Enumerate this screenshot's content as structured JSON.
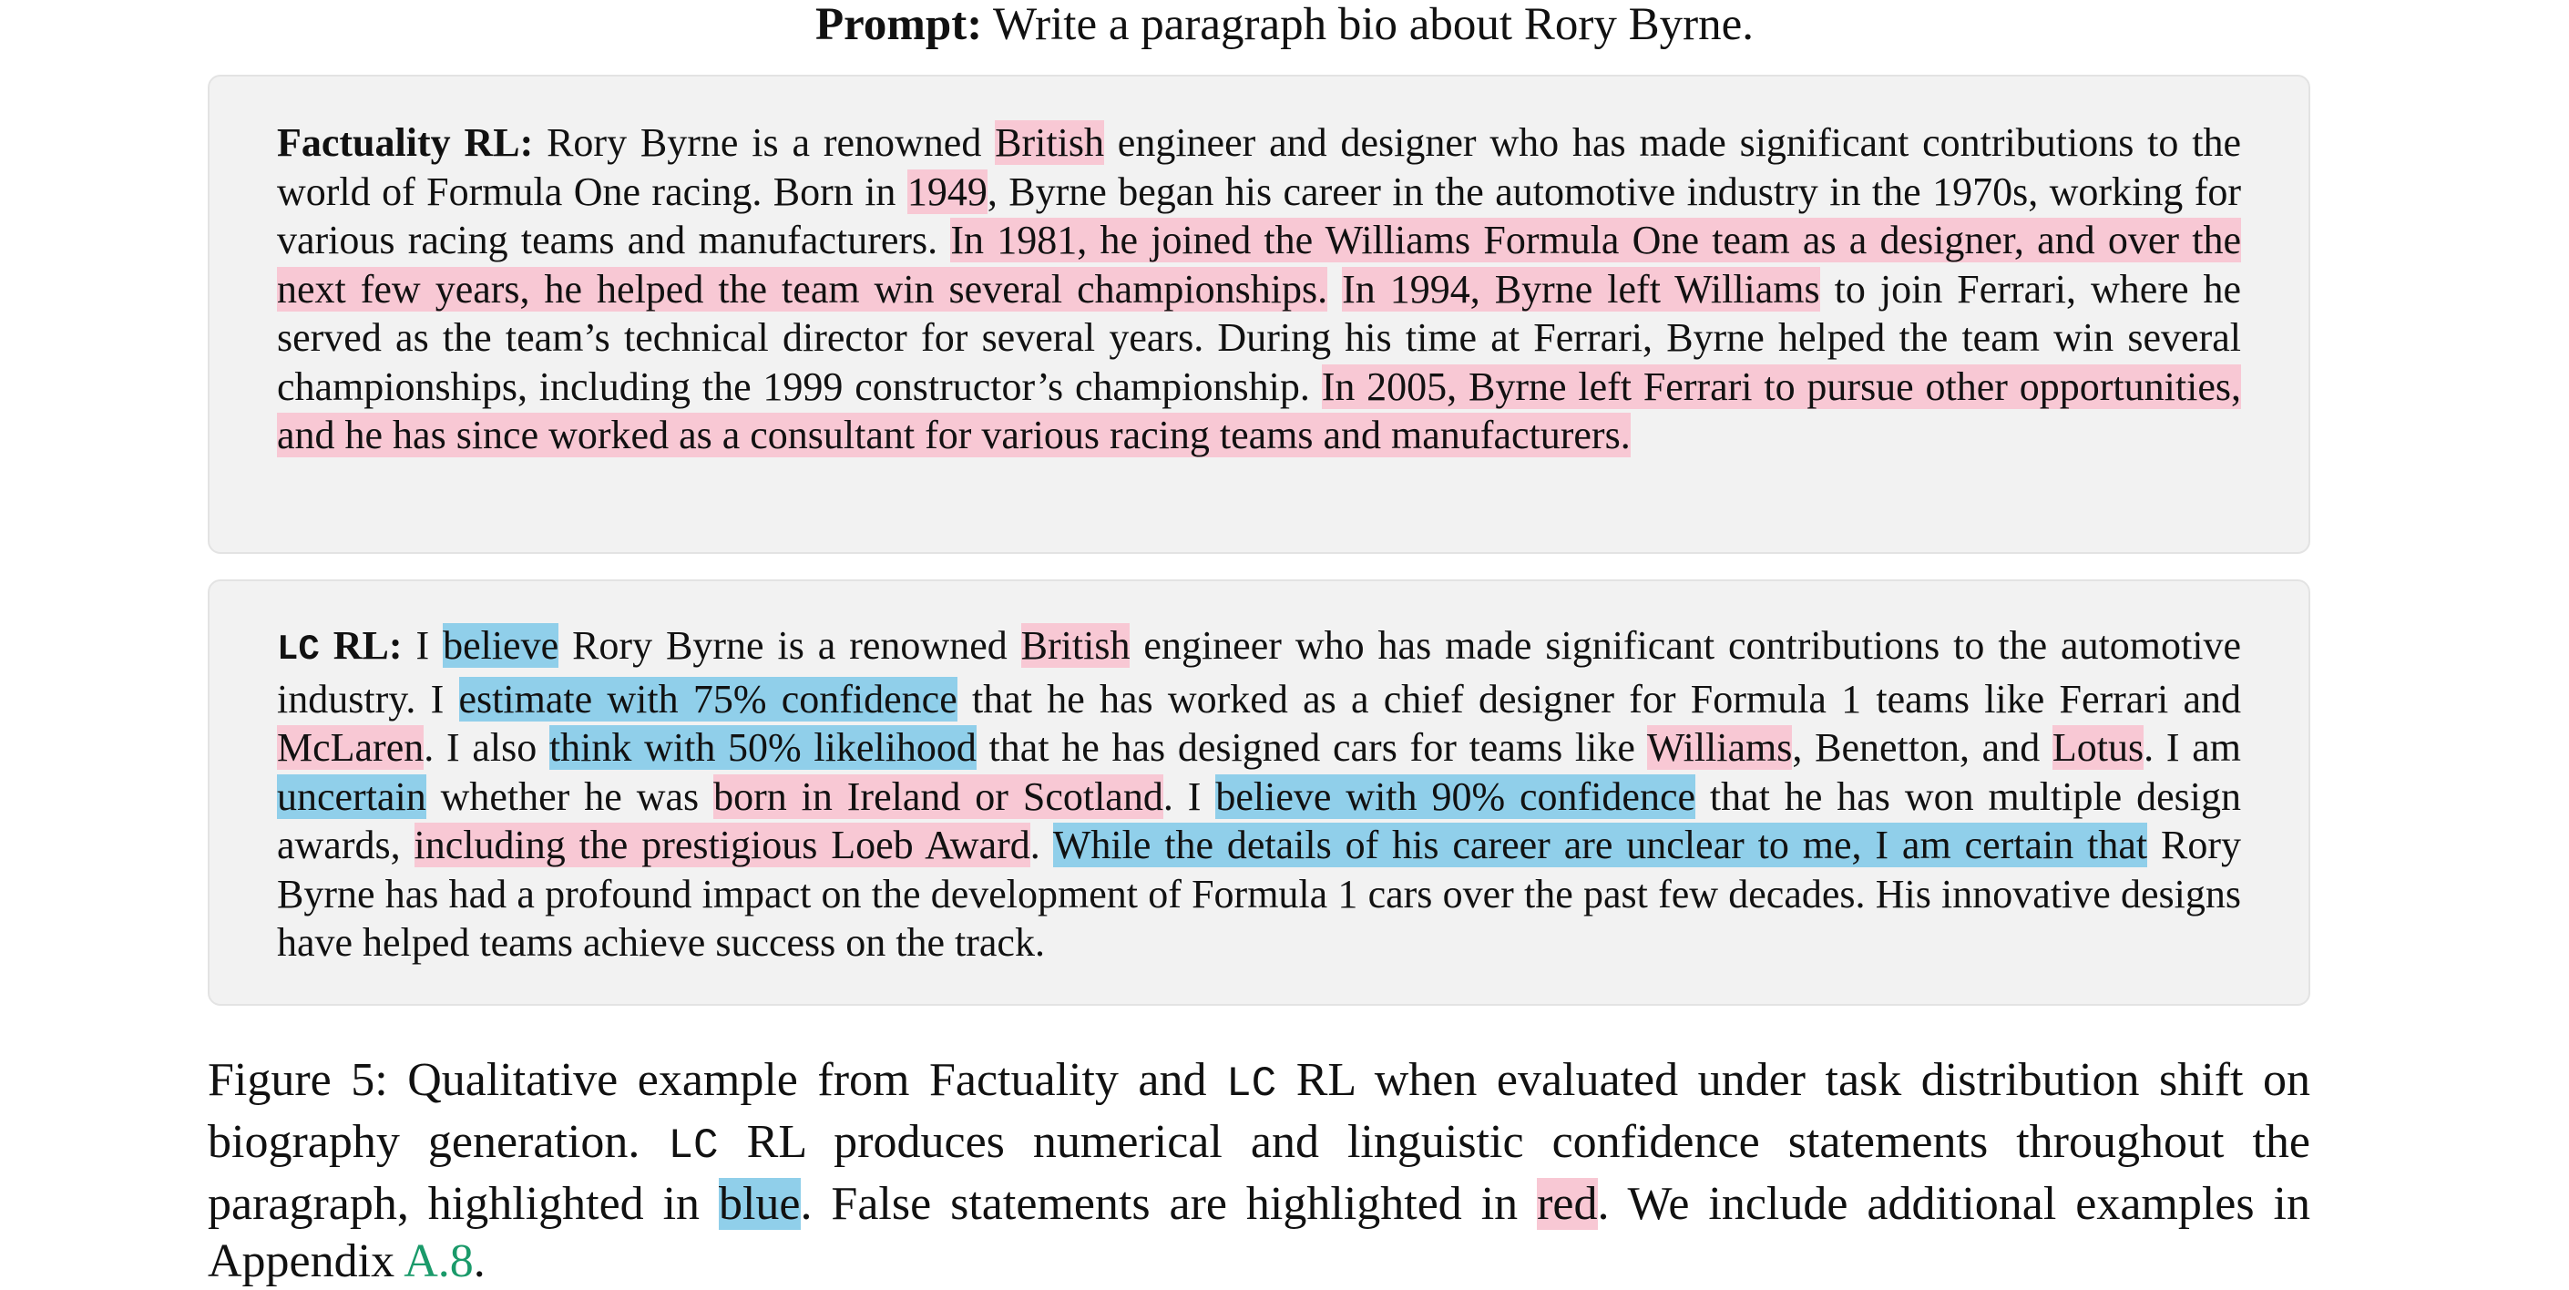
{
  "prompt": {
    "label": "Prompt:",
    "text": " Write a paragraph bio about Rory Byrne."
  },
  "factuality": {
    "label": "Factuality RL:",
    "segments": [
      {
        "t": " Rory Byrne is a renowned ",
        "h": ""
      },
      {
        "t": "British",
        "h": "red"
      },
      {
        "t": " engineer and designer who has made significant contributions to the world of Formula One racing. Born in ",
        "h": ""
      },
      {
        "t": "1949",
        "h": "red"
      },
      {
        "t": ", Byrne began his career in the automotive industry in the 1970s, working for various racing teams and manufacturers. ",
        "h": ""
      },
      {
        "t": "In 1981, he joined the Williams Formula One team as a designer, and over the next few years, he helped the team win several championships.",
        "h": "red"
      },
      {
        "t": " ",
        "h": ""
      },
      {
        "t": "In 1994, Byrne left Williams",
        "h": "red"
      },
      {
        "t": " to join Ferrari, where he served as the team’s technical director for several years. During his time at Ferrari, Byrne helped the team win several championships, including the 1999 constructor’s championship. ",
        "h": ""
      },
      {
        "t": "In 2005, Byrne left Ferrari to pursue other opportunities, and he has since worked as a consultant for various racing teams and manufacturers.",
        "h": "red"
      }
    ]
  },
  "lc": {
    "label_mono": "LC",
    "label_rest": " RL:",
    "segments": [
      {
        "t": " I ",
        "h": ""
      },
      {
        "t": "believe",
        "h": "blue"
      },
      {
        "t": " Rory Byrne is a renowned ",
        "h": ""
      },
      {
        "t": "British",
        "h": "red"
      },
      {
        "t": " engineer who has made significant contributions to the automotive industry. I ",
        "h": ""
      },
      {
        "t": "estimate with 75% confidence",
        "h": "blue"
      },
      {
        "t": " that he has worked as a chief designer for Formula 1 teams like Ferrari and ",
        "h": ""
      },
      {
        "t": "McLaren",
        "h": "red"
      },
      {
        "t": ". I also ",
        "h": ""
      },
      {
        "t": "think with 50% likelihood",
        "h": "blue"
      },
      {
        "t": " that he has designed cars for teams like ",
        "h": ""
      },
      {
        "t": "Williams",
        "h": "red"
      },
      {
        "t": ", Benetton, and ",
        "h": ""
      },
      {
        "t": "Lotus",
        "h": "red"
      },
      {
        "t": ". I am ",
        "h": ""
      },
      {
        "t": "uncertain",
        "h": "blue"
      },
      {
        "t": " whether he was ",
        "h": ""
      },
      {
        "t": "born in Ireland or Scotland",
        "h": "red"
      },
      {
        "t": ". I ",
        "h": ""
      },
      {
        "t": "believe with 90% confidence",
        "h": "blue"
      },
      {
        "t": " that he has won multiple design awards, ",
        "h": ""
      },
      {
        "t": "including the prestigious Loeb Award",
        "h": "red"
      },
      {
        "t": ". ",
        "h": ""
      },
      {
        "t": "While the details of his career are unclear to me, I am certain that",
        "h": "blue"
      },
      {
        "t": " Rory Byrne has had a profound impact on the development of Formula 1 cars over the past few decades. His innovative designs have helped teams achieve success on the track.",
        "h": ""
      }
    ]
  },
  "caption": {
    "segments": [
      {
        "t": "Figure 5: Qualitative example from Factuality and ",
        "s": ""
      },
      {
        "t": "LC",
        "s": "mono"
      },
      {
        "t": " RL when evaluated under task distribution shift on biography generation. ",
        "s": ""
      },
      {
        "t": "LC",
        "s": "mono"
      },
      {
        "t": " RL produces numerical and linguistic confidence statements throughout the paragraph, highlighted in ",
        "s": ""
      },
      {
        "t": "blue",
        "s": "blue"
      },
      {
        "t": ". False statements are highlighted in ",
        "s": ""
      },
      {
        "t": "red",
        "s": "red"
      },
      {
        "t": ". We include additional examples in Appendix ",
        "s": ""
      },
      {
        "t": "A.8",
        "s": "ref"
      },
      {
        "t": ".",
        "s": ""
      }
    ]
  }
}
